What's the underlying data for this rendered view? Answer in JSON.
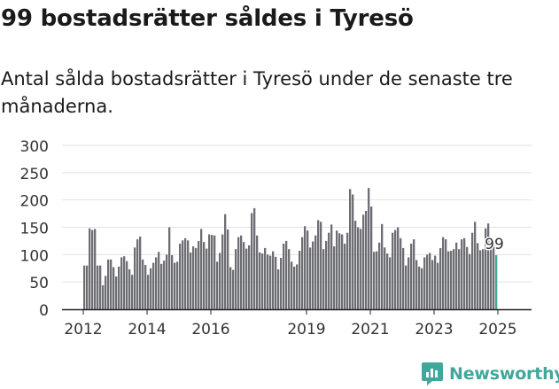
{
  "page": {
    "title": "99 bostadsrätter såldes i Tyresö",
    "subtitle": "Antal sålda bostadsrätter i Tyresö under de senaste tre månaderna.",
    "brand": "Newsworthy"
  },
  "colors": {
    "bar": "#6d6d74",
    "highlight": "#3fa89a",
    "grid": "#e2e2e2",
    "text": "#333333",
    "brand": "#3fa89a"
  },
  "chart_data": {
    "type": "bar",
    "title": "",
    "xlabel": "",
    "ylabel": "",
    "ylim": [
      0,
      300
    ],
    "yticks": [
      0,
      50,
      100,
      150,
      200,
      250,
      300
    ],
    "xticks": [
      "2012",
      "2014",
      "2016",
      "2019",
      "2021",
      "2023",
      "2025"
    ],
    "grid": true,
    "last_label": "99",
    "values": [
      80,
      80,
      148,
      145,
      147,
      80,
      80,
      44,
      61,
      91,
      91,
      77,
      60,
      78,
      95,
      97,
      88,
      73,
      63,
      113,
      128,
      133,
      91,
      81,
      63,
      75,
      85,
      95,
      105,
      83,
      89,
      100,
      150,
      99,
      85,
      87,
      120,
      126,
      130,
      126,
      104,
      115,
      112,
      125,
      147,
      123,
      111,
      137,
      136,
      135,
      87,
      103,
      137,
      174,
      146,
      77,
      72,
      110,
      132,
      135,
      123,
      111,
      117,
      176,
      185,
      135,
      104,
      102,
      112,
      100,
      98,
      106,
      96,
      73,
      94,
      120,
      125,
      110,
      87,
      78,
      82,
      107,
      132,
      152,
      144,
      113,
      124,
      135,
      163,
      160,
      110,
      125,
      140,
      155,
      115,
      144,
      139,
      137,
      120,
      140,
      220,
      210,
      162,
      150,
      147,
      173,
      180,
      222,
      188,
      105,
      106,
      122,
      156,
      113,
      102,
      95,
      140,
      145,
      150,
      130,
      112,
      80,
      95,
      120,
      128,
      90,
      78,
      75,
      95,
      100,
      103,
      90,
      98,
      85,
      112,
      132,
      128,
      106,
      107,
      110,
      122,
      110,
      128,
      130,
      114,
      101,
      140,
      160,
      121,
      108,
      110,
      148,
      157,
      121,
      120,
      99
    ]
  }
}
